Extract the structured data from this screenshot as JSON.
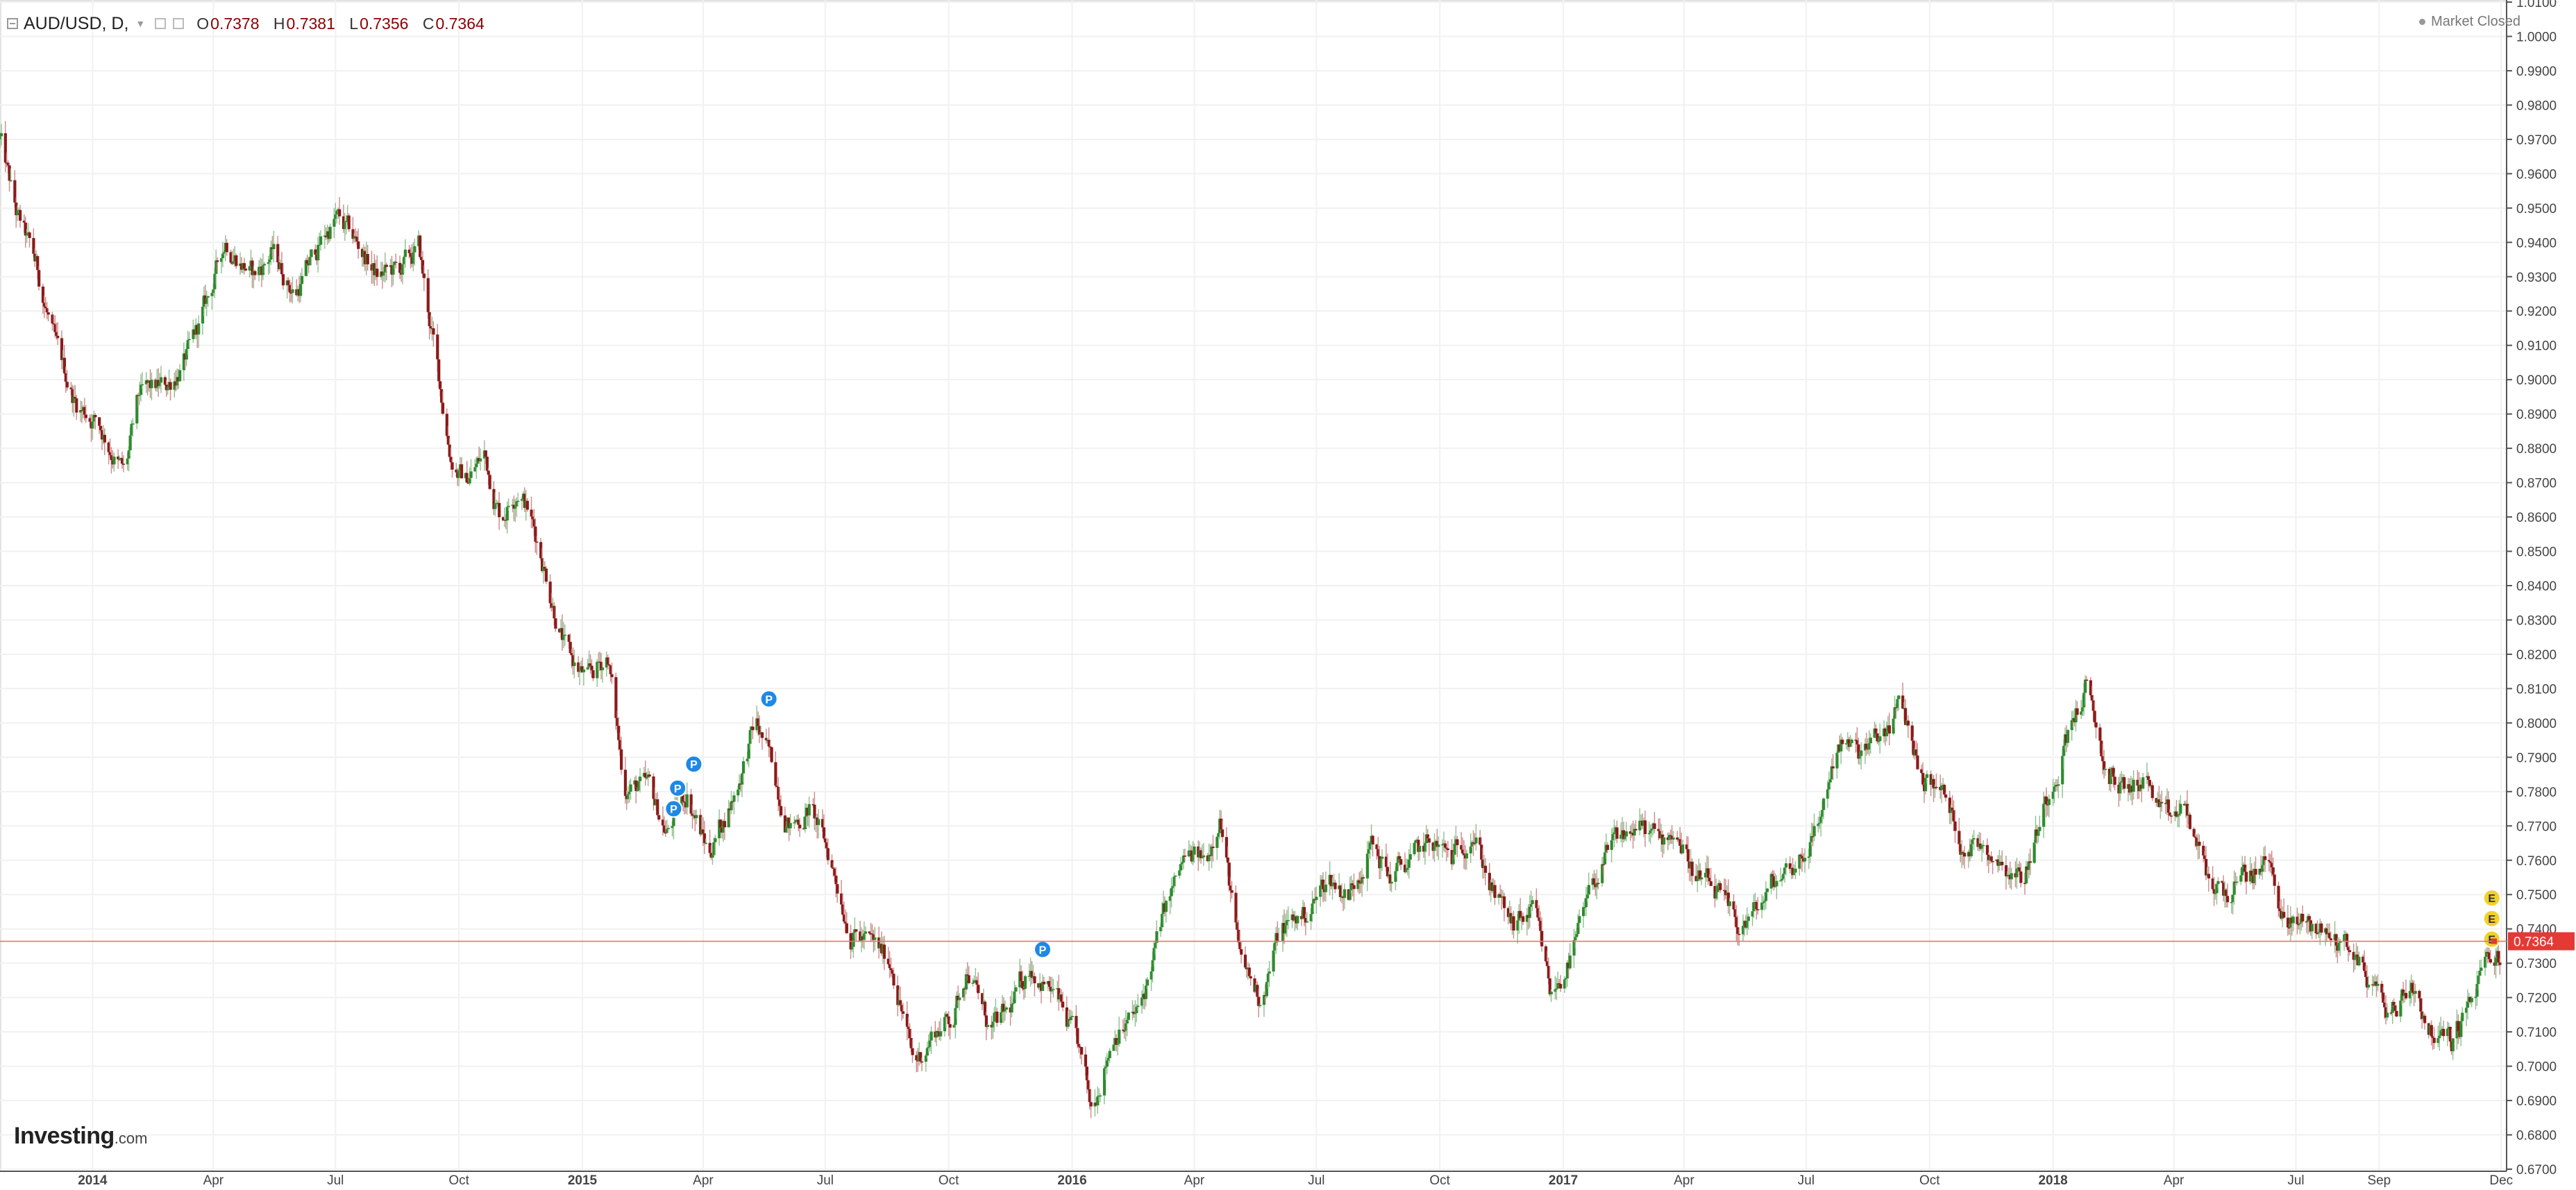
{
  "header": {
    "symbol": "AUD/USD, D,",
    "open_label": "O",
    "open": "0.7378",
    "high_label": "H",
    "high": "0.7381",
    "low_label": "L",
    "low": "0.7356",
    "close_label": "C",
    "close": "0.7364"
  },
  "status": {
    "text": "Market Closed"
  },
  "logo": {
    "name": "Investing",
    "suffix": ".com"
  },
  "colors": {
    "up": "#2e8b2e",
    "down": "#8b1a1a",
    "price_line": "#e8756f",
    "price_tag": "#e53935",
    "grid": "#f1f1f1"
  },
  "chart_data": {
    "type": "candlestick",
    "interval": "D",
    "y_axis_side": "right",
    "ylim": [
      0.67,
      1.01
    ],
    "y_ticks": [
      "0.6700",
      "0.6800",
      "0.6900",
      "0.7000",
      "0.7100",
      "0.7200",
      "0.7300",
      "0.7400",
      "0.7500",
      "0.7600",
      "0.7700",
      "0.7800",
      "0.7900",
      "0.8000",
      "0.8100",
      "0.8200",
      "0.8300",
      "0.8400",
      "0.8500",
      "0.8600",
      "0.8700",
      "0.8800",
      "0.8900",
      "0.9000",
      "0.9100",
      "0.9200",
      "0.9300",
      "0.9400",
      "0.9500",
      "0.9600",
      "0.9700",
      "0.9800",
      "0.9900",
      "1.0000",
      "1.0100"
    ],
    "x_range": [
      "2013-10-24",
      "2018-12-05"
    ],
    "x_ticks": [
      {
        "label": "2014",
        "date": "2014-01-01",
        "bold": true
      },
      {
        "label": "Apr",
        "date": "2014-04-01"
      },
      {
        "label": "Jul",
        "date": "2014-07-01"
      },
      {
        "label": "Oct",
        "date": "2014-10-01"
      },
      {
        "label": "2015",
        "date": "2015-01-01",
        "bold": true
      },
      {
        "label": "Apr",
        "date": "2015-04-01"
      },
      {
        "label": "Jul",
        "date": "2015-07-01"
      },
      {
        "label": "Oct",
        "date": "2015-10-01"
      },
      {
        "label": "2016",
        "date": "2016-01-01",
        "bold": true
      },
      {
        "label": "Apr",
        "date": "2016-04-01"
      },
      {
        "label": "Jul",
        "date": "2016-07-01"
      },
      {
        "label": "Oct",
        "date": "2016-10-01"
      },
      {
        "label": "2017",
        "date": "2017-01-01",
        "bold": true
      },
      {
        "label": "Apr",
        "date": "2017-04-01"
      },
      {
        "label": "Jul",
        "date": "2017-07-01"
      },
      {
        "label": "Oct",
        "date": "2017-10-01"
      },
      {
        "label": "2018",
        "date": "2018-01-01",
        "bold": true
      },
      {
        "label": "Apr",
        "date": "2018-04-01"
      },
      {
        "label": "Jul",
        "date": "2018-07-01"
      },
      {
        "label": "Sep",
        "date": "2018-09-01"
      },
      {
        "label": "Dec",
        "date": "2018-12-01"
      }
    ],
    "series": [
      {
        "points": [
          [
            "2013-10-24",
            0.97
          ],
          [
            "2013-11-05",
            0.948
          ],
          [
            "2013-11-20",
            0.933
          ],
          [
            "2013-12-05",
            0.908
          ],
          [
            "2013-12-20",
            0.893
          ],
          [
            "2014-01-05",
            0.888
          ],
          [
            "2014-01-25",
            0.872
          ],
          [
            "2014-02-05",
            0.895
          ],
          [
            "2014-02-25",
            0.898
          ],
          [
            "2014-03-15",
            0.908
          ],
          [
            "2014-04-01",
            0.928
          ],
          [
            "2014-04-10",
            0.941
          ],
          [
            "2014-05-01",
            0.93
          ],
          [
            "2014-05-15",
            0.937
          ],
          [
            "2014-06-01",
            0.925
          ],
          [
            "2014-06-20",
            0.94
          ],
          [
            "2014-07-01",
            0.947
          ],
          [
            "2014-07-20",
            0.938
          ],
          [
            "2014-08-01",
            0.93
          ],
          [
            "2014-08-20",
            0.932
          ],
          [
            "2014-09-01",
            0.938
          ],
          [
            "2014-09-10",
            0.915
          ],
          [
            "2014-09-25",
            0.878
          ],
          [
            "2014-10-05",
            0.87
          ],
          [
            "2014-10-20",
            0.878
          ],
          [
            "2014-11-01",
            0.86
          ],
          [
            "2014-11-15",
            0.87
          ],
          [
            "2014-12-01",
            0.85
          ],
          [
            "2014-12-20",
            0.82
          ],
          [
            "2015-01-05",
            0.812
          ],
          [
            "2015-01-20",
            0.82
          ],
          [
            "2015-02-01",
            0.782
          ],
          [
            "2015-02-20",
            0.78
          ],
          [
            "2015-03-05",
            0.768
          ],
          [
            "2015-03-20",
            0.78
          ],
          [
            "2015-04-05",
            0.762
          ],
          [
            "2015-04-25",
            0.78
          ],
          [
            "2015-05-10",
            0.8
          ],
          [
            "2015-05-20",
            0.79
          ],
          [
            "2015-06-05",
            0.77
          ],
          [
            "2015-06-20",
            0.775
          ],
          [
            "2015-07-05",
            0.76
          ],
          [
            "2015-07-20",
            0.74
          ],
          [
            "2015-08-05",
            0.735
          ],
          [
            "2015-08-20",
            0.73
          ],
          [
            "2015-09-05",
            0.7
          ],
          [
            "2015-09-20",
            0.71
          ],
          [
            "2015-10-05",
            0.715
          ],
          [
            "2015-10-15",
            0.73
          ],
          [
            "2015-11-01",
            0.71
          ],
          [
            "2015-11-15",
            0.715
          ],
          [
            "2015-12-01",
            0.73
          ],
          [
            "2015-12-20",
            0.72
          ],
          [
            "2016-01-05",
            0.705
          ],
          [
            "2016-01-15",
            0.688
          ],
          [
            "2016-02-01",
            0.71
          ],
          [
            "2016-02-20",
            0.715
          ],
          [
            "2016-03-10",
            0.745
          ],
          [
            "2016-03-25",
            0.76
          ],
          [
            "2016-04-10",
            0.76
          ],
          [
            "2016-04-20",
            0.775
          ],
          [
            "2016-05-05",
            0.73
          ],
          [
            "2016-05-20",
            0.72
          ],
          [
            "2016-06-05",
            0.74
          ],
          [
            "2016-06-25",
            0.745
          ],
          [
            "2016-07-10",
            0.755
          ],
          [
            "2016-07-25",
            0.75
          ],
          [
            "2016-08-10",
            0.765
          ],
          [
            "2016-08-25",
            0.755
          ],
          [
            "2016-09-10",
            0.76
          ],
          [
            "2016-09-25",
            0.765
          ],
          [
            "2016-10-10",
            0.76
          ],
          [
            "2016-10-25",
            0.77
          ],
          [
            "2016-11-10",
            0.75
          ],
          [
            "2016-11-25",
            0.74
          ],
          [
            "2016-12-10",
            0.745
          ],
          [
            "2016-12-23",
            0.72
          ],
          [
            "2017-01-10",
            0.735
          ],
          [
            "2017-01-25",
            0.755
          ],
          [
            "2017-02-10",
            0.765
          ],
          [
            "2017-02-25",
            0.77
          ],
          [
            "2017-03-15",
            0.765
          ],
          [
            "2017-03-25",
            0.77
          ],
          [
            "2017-04-10",
            0.755
          ],
          [
            "2017-04-25",
            0.75
          ],
          [
            "2017-05-10",
            0.74
          ],
          [
            "2017-05-25",
            0.745
          ],
          [
            "2017-06-10",
            0.755
          ],
          [
            "2017-06-25",
            0.76
          ],
          [
            "2017-07-10",
            0.77
          ],
          [
            "2017-07-25",
            0.795
          ],
          [
            "2017-08-10",
            0.79
          ],
          [
            "2017-08-25",
            0.795
          ],
          [
            "2017-09-10",
            0.805
          ],
          [
            "2017-09-25",
            0.785
          ],
          [
            "2017-10-10",
            0.78
          ],
          [
            "2017-10-25",
            0.765
          ],
          [
            "2017-11-10",
            0.765
          ],
          [
            "2017-11-25",
            0.76
          ],
          [
            "2017-12-10",
            0.755
          ],
          [
            "2017-12-25",
            0.775
          ],
          [
            "2018-01-10",
            0.795
          ],
          [
            "2018-01-25",
            0.81
          ],
          [
            "2018-02-10",
            0.785
          ],
          [
            "2018-02-25",
            0.78
          ],
          [
            "2018-03-10",
            0.785
          ],
          [
            "2018-03-25",
            0.77
          ],
          [
            "2018-04-10",
            0.775
          ],
          [
            "2018-04-25",
            0.755
          ],
          [
            "2018-05-10",
            0.75
          ],
          [
            "2018-05-25",
            0.755
          ],
          [
            "2018-06-10",
            0.76
          ],
          [
            "2018-06-25",
            0.74
          ],
          [
            "2018-07-10",
            0.742
          ],
          [
            "2018-07-25",
            0.738
          ],
          [
            "2018-08-10",
            0.735
          ],
          [
            "2018-08-25",
            0.725
          ],
          [
            "2018-09-10",
            0.715
          ],
          [
            "2018-09-25",
            0.725
          ],
          [
            "2018-10-10",
            0.71
          ],
          [
            "2018-10-25",
            0.707
          ],
          [
            "2018-11-10",
            0.72
          ],
          [
            "2018-11-20",
            0.73
          ],
          [
            "2018-11-30",
            0.732
          ]
        ]
      }
    ],
    "current_price": "0.7364",
    "event_markers": [
      {
        "label": "P",
        "date": "2015-03-10",
        "value": 0.775
      },
      {
        "label": "P",
        "date": "2015-03-13",
        "value": 0.781
      },
      {
        "label": "P",
        "date": "2015-03-25",
        "value": 0.788
      },
      {
        "label": "P",
        "date": "2015-05-20",
        "value": 0.807
      },
      {
        "label": "P",
        "date": "2015-12-10",
        "value": 0.734
      },
      {
        "label": "E",
        "date": "2018-11-24",
        "value": 0.749
      },
      {
        "label": "E",
        "date": "2018-11-24",
        "value": 0.743
      },
      {
        "label": "E",
        "date": "2018-11-24",
        "value": 0.737
      }
    ]
  }
}
